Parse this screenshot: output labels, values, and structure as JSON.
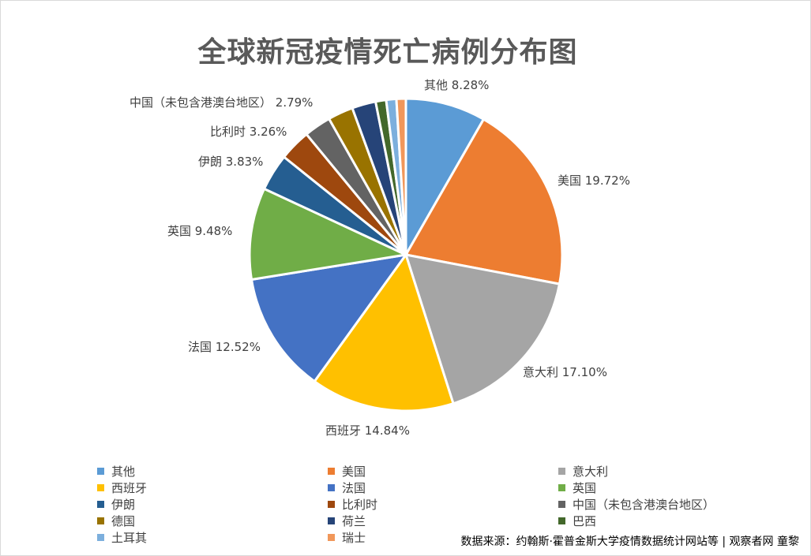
{
  "chart_data": {
    "type": "pie",
    "title": "全球新冠疫情死亡病例分布图",
    "slices": [
      {
        "name": "其他",
        "value": 8.28,
        "label": "其他 8.28%",
        "color": "#5b9bd5"
      },
      {
        "name": "美国",
        "value": 19.72,
        "label": "美国 19.72%",
        "color": "#ed7d31"
      },
      {
        "name": "意大利",
        "value": 17.1,
        "label": "意大利 17.10%",
        "color": "#a5a5a5"
      },
      {
        "name": "西班牙",
        "value": 14.84,
        "label": "西班牙 14.84%",
        "color": "#ffc000"
      },
      {
        "name": "法国",
        "value": 12.52,
        "label": "法国 12.52%",
        "color": "#4472c4"
      },
      {
        "name": "英国",
        "value": 9.48,
        "label": "英国 9.48%",
        "color": "#70ad47"
      },
      {
        "name": "伊朗",
        "value": 3.83,
        "label": "伊朗 3.83%",
        "color": "#255e91"
      },
      {
        "name": "比利时",
        "value": 3.26,
        "label": "比利时 3.26%",
        "color": "#9e480e"
      },
      {
        "name": "中国（未包含港澳台地区）",
        "value": 2.79,
        "label": "中国（未包含港澳台地区） 2.79%",
        "color": "#636363"
      },
      {
        "name": "德国",
        "value": 2.61,
        "label": "",
        "color": "#997300"
      },
      {
        "name": "荷兰",
        "value": 2.46,
        "label": "",
        "color": "#264478"
      },
      {
        "name": "巴西",
        "value": 1.09,
        "label": "",
        "color": "#43682b"
      },
      {
        "name": "土耳其",
        "value": 1.05,
        "label": "",
        "color": "#7cafdd"
      },
      {
        "name": "瑞士",
        "value": 0.97,
        "label": "",
        "color": "#f1975a"
      }
    ],
    "legend_position": "bottom"
  },
  "source_note": "数据来源：约翰斯·霍普金斯大学疫情数据统计网站等 | 观察者网 童黎"
}
